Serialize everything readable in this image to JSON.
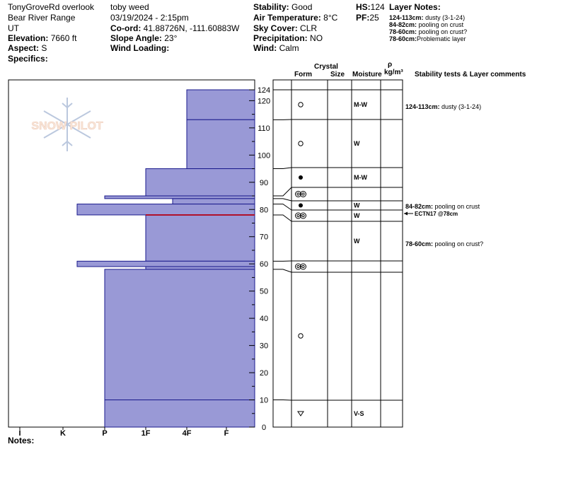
{
  "header": {
    "location": "TonyGroveRd overlook",
    "range": "Bear River Range",
    "state": "UT",
    "elevation_label": "Elevation:",
    "elevation_value": "7660 ft",
    "aspect_label": "Aspect:",
    "aspect_value": "S",
    "specifics_label": "Specifics:",
    "observer": "toby weed",
    "datetime": "03/19/2024 - 2:15pm",
    "coord_label": "Co-ord:",
    "coord_value": "41.88726N, -111.60883W",
    "slope_label": "Slope Angle:",
    "slope_value": "23°",
    "wind_loading_label": "Wind Loading:",
    "stability_label": "Stability:",
    "stability_value": "Good",
    "air_temp_label": "Air Temperature:",
    "air_temp_value": "8°C",
    "sky_label": "Sky Cover:",
    "sky_value": "CLR",
    "precip_label": "Precipitation:",
    "precip_value": "NO",
    "wind_label": "Wind:",
    "wind_value": "Calm",
    "hs_label": "HS:",
    "hs_value": "124",
    "pf_label": "PF:",
    "pf_value": "25",
    "layer_notes_title": "Layer Notes:",
    "layer_notes": [
      {
        "range": "124-113cm:",
        "text": "dusty (3-1-24)"
      },
      {
        "range": "84-82cm:",
        "text": "pooling on crust"
      },
      {
        "range": "78-60cm:",
        "text": "pooling on crust?"
      },
      {
        "range": "78-60cm:",
        "text": "Problematic layer"
      }
    ]
  },
  "watermark": "SNOW PILOT",
  "columns": {
    "crystal": "Crystal",
    "form": "Form",
    "size": "Size",
    "moisture": "Moisture",
    "rho": "ρ",
    "density_unit": "kg/m³",
    "comments": "Stability tests & Layer comments"
  },
  "notes_label": "Notes:",
  "colors": {
    "layer_fill": "#9999d6",
    "layer_stroke": "#1a1a8c",
    "problem_line": "#b0102a",
    "grid": "#000000"
  },
  "chart_data": {
    "type": "snow-profile",
    "depth_axis": {
      "min": 0,
      "max": 124,
      "ticks": [
        0,
        10,
        20,
        30,
        40,
        50,
        60,
        70,
        80,
        90,
        100,
        110,
        120,
        124
      ]
    },
    "hardness_axis": {
      "ticks": [
        "I",
        "K",
        "P",
        "1F",
        "4F",
        "F"
      ]
    },
    "hardness_profile": [
      {
        "top": 124,
        "bottom": 113,
        "hardness": "4F"
      },
      {
        "top": 113,
        "bottom": 95,
        "hardness": "4F"
      },
      {
        "top": 95,
        "bottom": 85,
        "hardness": "1F"
      },
      {
        "top": 85,
        "bottom": 84,
        "hardness": "P+"
      },
      {
        "top": 84,
        "bottom": 82,
        "hardness": "4F-"
      },
      {
        "top": 82,
        "bottom": 78,
        "hardness": "K+"
      },
      {
        "top": 78,
        "bottom": 61,
        "hardness": "1F"
      },
      {
        "top": 61,
        "bottom": 59,
        "hardness": "K+"
      },
      {
        "top": 59,
        "bottom": 58,
        "hardness": "1F"
      },
      {
        "top": 58,
        "bottom": 10,
        "hardness": "P"
      },
      {
        "top": 10,
        "bottom": 0,
        "hardness": "P"
      }
    ],
    "problem_layer_depth": 78,
    "layers": [
      {
        "top": 124,
        "bottom": 113,
        "form": "open-circle",
        "form_depth": 118,
        "moisture": "M-W"
      },
      {
        "top": 113,
        "bottom": 95,
        "form": "open-circle",
        "form_depth": 104,
        "moisture": "W"
      },
      {
        "top": 95,
        "bottom": 85,
        "form": "filled-circle",
        "form_depth": 92,
        "moisture": "M-W"
      },
      {
        "top": 85,
        "bottom": 84,
        "form": "double-ring",
        "form_depth": 86,
        "moisture": ""
      },
      {
        "top": 84,
        "bottom": 82,
        "form": "filled-circle",
        "form_depth": 82,
        "moisture": "W"
      },
      {
        "top": 82,
        "bottom": 78,
        "form": "double-ring",
        "form_depth": 78,
        "moisture": "W"
      },
      {
        "top": 78,
        "bottom": 61,
        "form": "",
        "form_depth": 0,
        "moisture": "W"
      },
      {
        "top": 61,
        "bottom": 58,
        "form": "double-ring",
        "form_depth": 59,
        "moisture": ""
      },
      {
        "top": 58,
        "bottom": 10,
        "form": "open-circle",
        "form_depth": 33,
        "moisture": ""
      },
      {
        "top": 10,
        "bottom": 0,
        "form": "depth-hoar",
        "form_depth": 5,
        "moisture": "V-S"
      }
    ],
    "comments": [
      {
        "depth": 118,
        "range": "124-113cm:",
        "text": "dusty (3-1-24)"
      },
      {
        "depth": 82,
        "range": "84-82cm:",
        "text": "pooling on crust"
      },
      {
        "depth": 68,
        "range": "78-60cm:",
        "text": "pooling on crust?"
      }
    ],
    "stability_tests": [
      {
        "depth": 78,
        "result": "ECTN17 @78cm"
      }
    ]
  }
}
